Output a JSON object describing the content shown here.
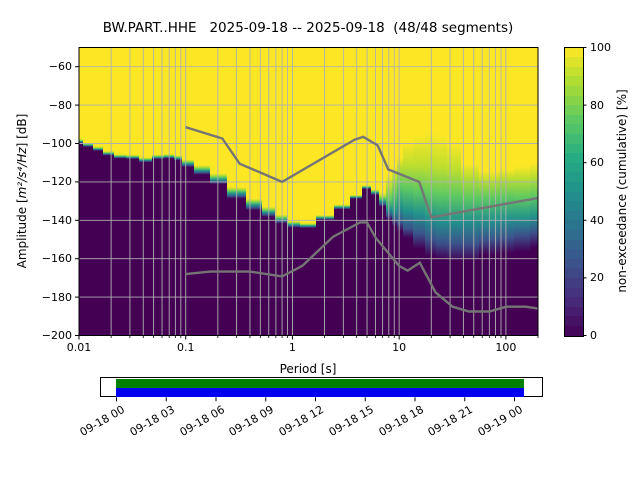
{
  "title": "BW.PART..HHE   2025-09-18 -- 2025-09-18  (48/48 segments)",
  "axes": {
    "x": {
      "label": "Period [s]",
      "scale": "log",
      "min": 0.01,
      "max": 200,
      "tick_labels": [
        "0.01",
        "0.1",
        "1",
        "10",
        "100"
      ],
      "tick_values": [
        0.01,
        0.1,
        1,
        10,
        100
      ]
    },
    "y": {
      "label_prefix": "Amplitude [",
      "label_math": "m²/s⁴/Hz",
      "label_suffix": "] [dB]",
      "min": -200,
      "max": -50,
      "tick_labels": [
        "−60",
        "−80",
        "−100",
        "−120",
        "−140",
        "−160",
        "−180",
        "−200"
      ],
      "tick_values": [
        -60,
        -80,
        -100,
        -120,
        -140,
        -160,
        -180,
        -200
      ]
    }
  },
  "colorbar": {
    "label": "non-exceedance (cumulative) [%]",
    "min": 0,
    "max": 100,
    "tick_labels": [
      "100",
      "80",
      "60",
      "40",
      "20",
      "0"
    ],
    "tick_values": [
      100,
      80,
      60,
      40,
      20,
      0
    ],
    "colormap": "viridis",
    "steps": 30
  },
  "chart_data": {
    "type": "heatmap",
    "title": "BW.PART..HHE   2025-09-18 -- 2025-09-18  (48/48 segments)",
    "xlabel": "Period [s]",
    "ylabel": "Amplitude [m²/s⁴/Hz] [dB]",
    "zlabel": "non-exceedance (cumulative) [%]",
    "xscale": "log",
    "xlim": [
      0.01,
      200
    ],
    "ylim": [
      -200,
      -50
    ],
    "zlim": [
      0,
      100
    ],
    "colormap": "viridis",
    "grid": true,
    "percentile_levels": [
      0,
      25,
      50,
      75,
      90,
      100
    ],
    "periods": [
      0.01,
      0.012,
      0.015,
      0.019,
      0.024,
      0.032,
      0.042,
      0.055,
      0.07,
      0.085,
      0.1,
      0.14,
      0.2,
      0.3,
      0.45,
      0.6,
      0.8,
      1.0,
      1.4,
      2.0,
      3.0,
      4.0,
      5.0,
      6.0,
      7.0,
      8.0,
      9.0,
      10.0,
      12.0,
      15.0,
      20.0,
      25.0,
      32.0,
      45.0,
      70.0,
      100.0,
      140.0,
      200.0
    ],
    "percentile_db": [
      [
        -99.5,
        -99.1,
        -98.7,
        -98.3,
        -97.8,
        -97.2
      ],
      [
        -101.5,
        -101.1,
        -100.7,
        -100.3,
        -99.8,
        -99.2
      ],
      [
        -103.5,
        -103.1,
        -102.7,
        -102.3,
        -101.8,
        -101.2
      ],
      [
        -106.0,
        -105.5,
        -105.1,
        -104.7,
        -104.2,
        -103.6
      ],
      [
        -107.5,
        -107.1,
        -106.7,
        -106.3,
        -105.8,
        -105.2
      ],
      [
        -107.8,
        -107.4,
        -107.0,
        -106.6,
        -106.1,
        -105.5
      ],
      [
        -109.5,
        -109.0,
        -108.5,
        -108.0,
        -107.5,
        -106.8
      ],
      [
        -107.8,
        -107.4,
        -107.0,
        -106.5,
        -106.0,
        -105.4
      ],
      [
        -107.5,
        -107.1,
        -106.7,
        -106.2,
        -105.7,
        -105.1
      ],
      [
        -108.5,
        -108.0,
        -107.5,
        -107.0,
        -106.4,
        -105.8
      ],
      [
        -112.0,
        -111.2,
        -110.4,
        -109.6,
        -108.8,
        -108.0
      ],
      [
        -116.0,
        -115.0,
        -114.0,
        -113.0,
        -112.0,
        -111.0
      ],
      [
        -121.0,
        -119.8,
        -118.6,
        -117.4,
        -116.3,
        -115.2
      ],
      [
        -128.5,
        -127.2,
        -125.9,
        -124.6,
        -123.5,
        -122.4
      ],
      [
        -134.5,
        -133.2,
        -131.9,
        -130.6,
        -129.5,
        -128.4
      ],
      [
        -138.0,
        -136.8,
        -135.7,
        -134.6,
        -133.6,
        -132.6
      ],
      [
        -141.5,
        -140.5,
        -139.5,
        -138.5,
        -137.6,
        -136.7
      ],
      [
        -143.5,
        -142.8,
        -142.1,
        -141.4,
        -140.8,
        -140.2
      ],
      [
        -143.8,
        -143.2,
        -142.7,
        -142.2,
        -141.7,
        -141.2
      ],
      [
        -139.5,
        -139.0,
        -138.5,
        -138.0,
        -137.5,
        -137.0
      ],
      [
        -134.0,
        -133.5,
        -133.0,
        -132.5,
        -132.0,
        -131.5
      ],
      [
        -128.5,
        -128.1,
        -127.7,
        -127.3,
        -126.9,
        -126.5
      ],
      [
        -123.5,
        -123.1,
        -122.7,
        -122.3,
        -121.9,
        -121.5
      ],
      [
        -126.5,
        -126.0,
        -125.4,
        -124.8,
        -124.2,
        -123.5
      ],
      [
        -132.5,
        -131.5,
        -130.0,
        -128.5,
        -127.0,
        -125.0
      ],
      [
        -139.5,
        -137.0,
        -134.0,
        -129.0,
        -122.0,
        -116.0
      ],
      [
        -143.0,
        -139.5,
        -135.5,
        -126.5,
        -117.5,
        -111.0
      ],
      [
        -145.5,
        -141.0,
        -133.0,
        -122.0,
        -112.0,
        -107.0
      ],
      [
        -149.0,
        -144.0,
        -135.0,
        -123.0,
        -111.5,
        -99.0
      ],
      [
        -154.5,
        -147.0,
        -136.5,
        -124.5,
        -111.5,
        -95.0
      ],
      [
        -158.5,
        -150.0,
        -139.0,
        -126.0,
        -112.0,
        -93.5
      ],
      [
        -160.0,
        -151.5,
        -140.0,
        -126.5,
        -112.5,
        -95.0
      ],
      [
        -161.0,
        -152.0,
        -140.5,
        -127.0,
        -113.5,
        -99.0
      ],
      [
        -161.0,
        -152.0,
        -140.0,
        -128.0,
        -117.0,
        -110.0
      ],
      [
        -158.0,
        -150.0,
        -140.0,
        -128.0,
        -119.0,
        -114.0
      ],
      [
        -157.0,
        -149.0,
        -139.0,
        -127.5,
        -118.0,
        -113.0
      ],
      [
        -156.0,
        -147.5,
        -139.0,
        -128.0,
        -118.0,
        -111.5
      ],
      [
        -154.0,
        -146.0,
        -138.0,
        -127.0,
        -117.0,
        -110.0
      ]
    ],
    "noise_models": {
      "color": "#757575",
      "nlnm": [
        [
          0.1,
          -168.0
        ],
        [
          0.17,
          -166.7
        ],
        [
          0.4,
          -166.7
        ],
        [
          0.8,
          -169.2
        ],
        [
          1.24,
          -163.7
        ],
        [
          2.4,
          -148.6
        ],
        [
          4.3,
          -141.1
        ],
        [
          5.0,
          -141.1
        ],
        [
          6.0,
          -149.0
        ],
        [
          10.0,
          -163.8
        ],
        [
          12.0,
          -166.2
        ],
        [
          15.6,
          -162.1
        ],
        [
          21.9,
          -177.5
        ],
        [
          31.6,
          -185.0
        ],
        [
          45.0,
          -187.5
        ],
        [
          70.0,
          -187.5
        ],
        [
          101.0,
          -185.0
        ],
        [
          154.0,
          -185.0
        ],
        [
          200.0,
          -186.0
        ]
      ],
      "nhnm": [
        [
          0.1,
          -91.5
        ],
        [
          0.22,
          -97.4
        ],
        [
          0.32,
          -110.5
        ],
        [
          0.8,
          -120.0
        ],
        [
          3.8,
          -98.1
        ],
        [
          4.6,
          -96.5
        ],
        [
          6.3,
          -101.0
        ],
        [
          7.9,
          -113.5
        ],
        [
          15.4,
          -120.0
        ],
        [
          20.0,
          -138.5
        ],
        [
          200.0,
          -128.4
        ]
      ]
    }
  },
  "timeline": {
    "tick_labels": [
      "09-18 00",
      "09-18 03",
      "09-18 06",
      "09-18 09",
      "09-18 12",
      "09-18 15",
      "09-18 18",
      "09-18 21",
      "09-19 00"
    ],
    "coverage_top_color": "#008000",
    "coverage_bottom_color": "#0000f0",
    "background": "#ffffff"
  }
}
